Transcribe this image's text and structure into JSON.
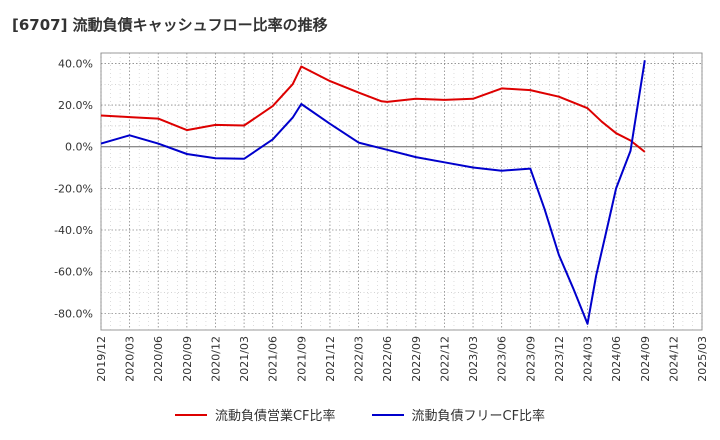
{
  "title": "[6707]  流動負債キャッシュフロー比率の推移",
  "chart_data": {
    "type": "line",
    "ylim": [
      -88,
      45
    ],
    "yticks": [
      40,
      20,
      0,
      -20,
      -40,
      -60,
      -80
    ],
    "ytick_labels": [
      "40.0%",
      "20.0%",
      "0.0%",
      "-20.0%",
      "-40.0%",
      "-60.0%",
      "-80.0%"
    ],
    "xticks": [
      "2019/12",
      "2020/03",
      "2020/06",
      "2020/09",
      "2020/12",
      "2021/03",
      "2021/06",
      "2021/09",
      "2021/12",
      "2022/03",
      "2022/06",
      "2022/09",
      "2022/12",
      "2023/03",
      "2023/06",
      "2023/09",
      "2023/12",
      "2024/03",
      "2024/06",
      "2024/09",
      "2024/12",
      "2025/03"
    ],
    "grid": true,
    "series": [
      {
        "name": "流動負債営業CF比率",
        "color": "#dd0000",
        "x": [
          0,
          1,
          2,
          3,
          4,
          5,
          6,
          6.7,
          7,
          8,
          9,
          9.8,
          10,
          11,
          12,
          13,
          14,
          15,
          16,
          17,
          17.5,
          18,
          18.5,
          19
        ],
        "values": [
          15,
          14.2,
          13.5,
          8,
          10.5,
          10.2,
          19.5,
          30,
          38.5,
          31.5,
          26,
          21.8,
          21.5,
          23,
          22.5,
          23,
          28,
          27.2,
          24,
          18.5,
          12,
          6.5,
          3,
          -2.5
        ]
      },
      {
        "name": "流動負債フリーCF比率",
        "color": "#0000cc",
        "x": [
          0,
          1,
          2,
          3,
          4,
          5,
          6,
          6.7,
          7,
          8,
          9,
          10,
          11,
          12,
          13,
          14,
          15,
          15.5,
          16,
          16.5,
          17,
          17.3,
          17.7,
          18,
          18.5,
          19
        ],
        "values": [
          1.5,
          5.5,
          1.5,
          -3.5,
          -5.5,
          -5.8,
          3.5,
          14,
          20.5,
          11,
          2,
          -1.5,
          -5,
          -7.5,
          -10,
          -11.5,
          -10.5,
          -30,
          -52,
          -68,
          -85,
          -62,
          -38,
          -20,
          -2,
          41.5
        ]
      }
    ]
  }
}
